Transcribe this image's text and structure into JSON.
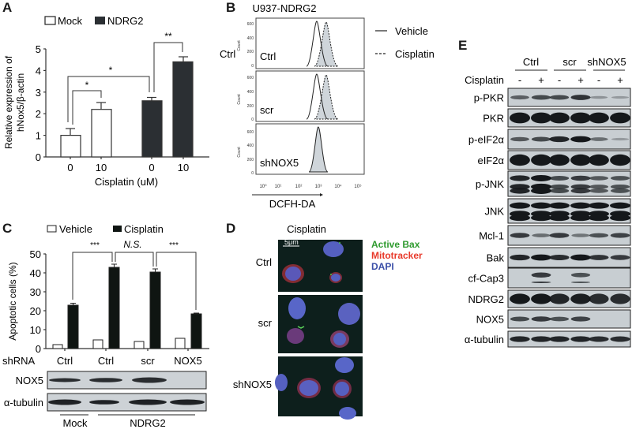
{
  "panels": {
    "A": {
      "letter": "A",
      "legend": [
        {
          "label": "Mock",
          "fill": "#ffffff"
        },
        {
          "label": "NDRG2",
          "fill": "#2b2f33"
        }
      ],
      "ylabel_line1": "Relative expression of",
      "ylabel_line2": "hNox5/β-actin",
      "xlabel": "Cisplatin (uM)",
      "significance": [
        {
          "label": "*",
          "from": 0,
          "to": 1
        },
        {
          "label": "*",
          "from": 0,
          "to": 2
        },
        {
          "label": "**",
          "from": 2,
          "to": 3
        }
      ]
    },
    "B": {
      "letter": "B",
      "title": "U937-NDRG2",
      "rows": [
        {
          "label": "Ctrl"
        },
        {
          "label": "scr"
        },
        {
          "label": "shNOX5"
        }
      ],
      "y_ticks": [
        "0",
        "200",
        "400",
        "600"
      ],
      "ylabel": "Count",
      "x_ticks": [
        "10⁰",
        "10¹",
        "10²",
        "10³",
        "10⁴",
        "10⁵"
      ],
      "xlabel": "DCFH-DA",
      "legend": [
        {
          "label": "Vehicle",
          "style": "solid"
        },
        {
          "label": "Cisplatin",
          "style": "dashed"
        }
      ]
    },
    "C": {
      "letter": "C",
      "legend": [
        {
          "label": "Vehicle",
          "fill": "#ffffff"
        },
        {
          "label": "Cisplatin",
          "fill": "#0f1512"
        }
      ],
      "ylabel": "Apoptotic cells (%)",
      "significance": [
        {
          "label": "***",
          "from": 0,
          "to": 1
        },
        {
          "label": "N.S.",
          "from": 1,
          "to": 2
        },
        {
          "label": "***",
          "from": 2,
          "to": 3
        }
      ],
      "shrna_label": "shRNA",
      "blot_rows": [
        {
          "label": "NOX5"
        },
        {
          "label": "α-tubulin"
        }
      ],
      "group_labels": [
        {
          "label": "Mock"
        },
        {
          "label": "NDRG2"
        }
      ]
    },
    "D": {
      "letter": "D",
      "title": "Cisplatin",
      "scale_bar": "5μm",
      "rows": [
        {
          "label": "Ctrl"
        },
        {
          "label": "scr"
        },
        {
          "label": "shNOX5"
        }
      ],
      "legend": [
        {
          "label": "Active Bax",
          "color": "#2e9a2e"
        },
        {
          "label": "Mitotracker",
          "color": "#e8392a"
        },
        {
          "label": "DAPI",
          "color": "#3b4fa8"
        }
      ]
    },
    "E": {
      "letter": "E",
      "groups": [
        {
          "label": "Ctrl"
        },
        {
          "label": "scr"
        },
        {
          "label": "shNOX5"
        }
      ],
      "treatment_label": "Cisplatin",
      "treatment_signs": [
        "-",
        "+",
        "-",
        "+",
        "-",
        "+"
      ],
      "blot_rows": [
        {
          "label": "p-PKR",
          "intensity": [
            0.45,
            0.6,
            0.6,
            0.75,
            0.1,
            0.05
          ]
        },
        {
          "label": "PKR",
          "intensity": [
            1,
            1,
            1,
            1,
            0.95,
            0.95
          ]
        },
        {
          "label": "p-eIF2α",
          "intensity": [
            0.5,
            0.6,
            0.85,
            0.95,
            0.35,
            0.05
          ]
        },
        {
          "label": "eIF2α",
          "intensity": [
            0.95,
            0.95,
            0.95,
            0.95,
            0.95,
            0.95
          ]
        },
        {
          "label": "p-JNK",
          "intensity": [
            0.85,
            1,
            0.6,
            0.7,
            0.5,
            0.55
          ]
        },
        {
          "label": "JNK",
          "intensity": [
            1,
            1,
            1,
            1,
            1,
            1
          ]
        },
        {
          "label": "Mcl-1",
          "intensity": [
            0.7,
            0.35,
            0.7,
            0.3,
            0.55,
            0.65
          ]
        },
        {
          "label": "Bak",
          "intensity": [
            0.85,
            0.95,
            0.8,
            0.95,
            0.75,
            0.7
          ]
        },
        {
          "label": "cf-Cap3",
          "intensity": [
            0,
            0.7,
            0,
            0.55,
            0,
            0
          ]
        },
        {
          "label": "NDRG2",
          "intensity": [
            0.95,
            0.95,
            0.85,
            0.9,
            0.8,
            0.8
          ]
        },
        {
          "label": "NOX5",
          "intensity": [
            0.6,
            0.7,
            0.55,
            0.65,
            0,
            0
          ]
        },
        {
          "label": "α-tubulin",
          "intensity": [
            0.85,
            0.85,
            0.85,
            0.85,
            0.8,
            0.8
          ]
        }
      ]
    }
  },
  "chart_data": [
    {
      "type": "bar",
      "title": "",
      "categories": [
        "0",
        "10",
        "0",
        "10"
      ],
      "series": [
        {
          "name": "Mock",
          "x": [
            "0",
            "10"
          ],
          "values": [
            1.0,
            2.2
          ],
          "errors": [
            0.3,
            0.3
          ]
        },
        {
          "name": "NDRG2",
          "x": [
            "0",
            "10"
          ],
          "values": [
            2.6,
            4.4
          ],
          "errors": [
            0.15,
            0.2
          ]
        }
      ],
      "xlabel": "Cisplatin (uM)",
      "ylabel": "Relative expression of hNox5/β-actin",
      "ylim": [
        0,
        5
      ],
      "yticks": [
        0,
        1,
        2,
        3,
        4,
        5
      ],
      "legend_position": "top",
      "annotations": [
        "* (Mock 0 vs Mock 10)",
        "* (Mock 0 vs NDRG2 0)",
        "** (NDRG2 0 vs NDRG2 10)"
      ]
    },
    {
      "type": "line",
      "title": "U937-NDRG2",
      "subplots": [
        {
          "label": "Ctrl",
          "vehicle_peak_log10": 2.9,
          "cisplatin_peak_log10": 3.15
        },
        {
          "label": "scr",
          "vehicle_peak_log10": 2.9,
          "cisplatin_peak_log10": 3.15
        },
        {
          "label": "shNOX5",
          "vehicle_peak_log10": 3.0,
          "cisplatin_peak_log10": 3.0
        }
      ],
      "series": [
        {
          "name": "Vehicle",
          "style": "solid"
        },
        {
          "name": "Cisplatin",
          "style": "dashed, filled grey"
        }
      ],
      "xlabel": "DCFH-DA",
      "ylabel": "Count",
      "xscale": "log",
      "xlim": [
        1,
        100000
      ],
      "ylim": [
        0,
        700
      ],
      "yticks": [
        0,
        200,
        400,
        600
      ],
      "peak_count": 620
    },
    {
      "type": "bar",
      "title": "",
      "categories": [
        "Ctrl",
        "Ctrl",
        "scr",
        "NOX5"
      ],
      "group_labels": [
        "Mock",
        "NDRG2",
        "NDRG2",
        "NDRG2"
      ],
      "series": [
        {
          "name": "Vehicle",
          "values": [
            2,
            4.5,
            3.8,
            5.5
          ]
        },
        {
          "name": "Cisplatin",
          "values": [
            23,
            43,
            40.5,
            18.5
          ],
          "errors": [
            1,
            1.5,
            1.5,
            0.5
          ]
        }
      ],
      "xlabel": "shRNA",
      "ylabel": "Apoptotic cells (%)",
      "ylim": [
        0,
        50
      ],
      "yticks": [
        0,
        10,
        20,
        30,
        40,
        50
      ],
      "legend_position": "top",
      "annotations": [
        "*** (Ctrl Mock vs Ctrl NDRG2)",
        "N.S. (Ctrl NDRG2 vs scr)",
        "*** (scr vs NOX5)"
      ]
    }
  ]
}
